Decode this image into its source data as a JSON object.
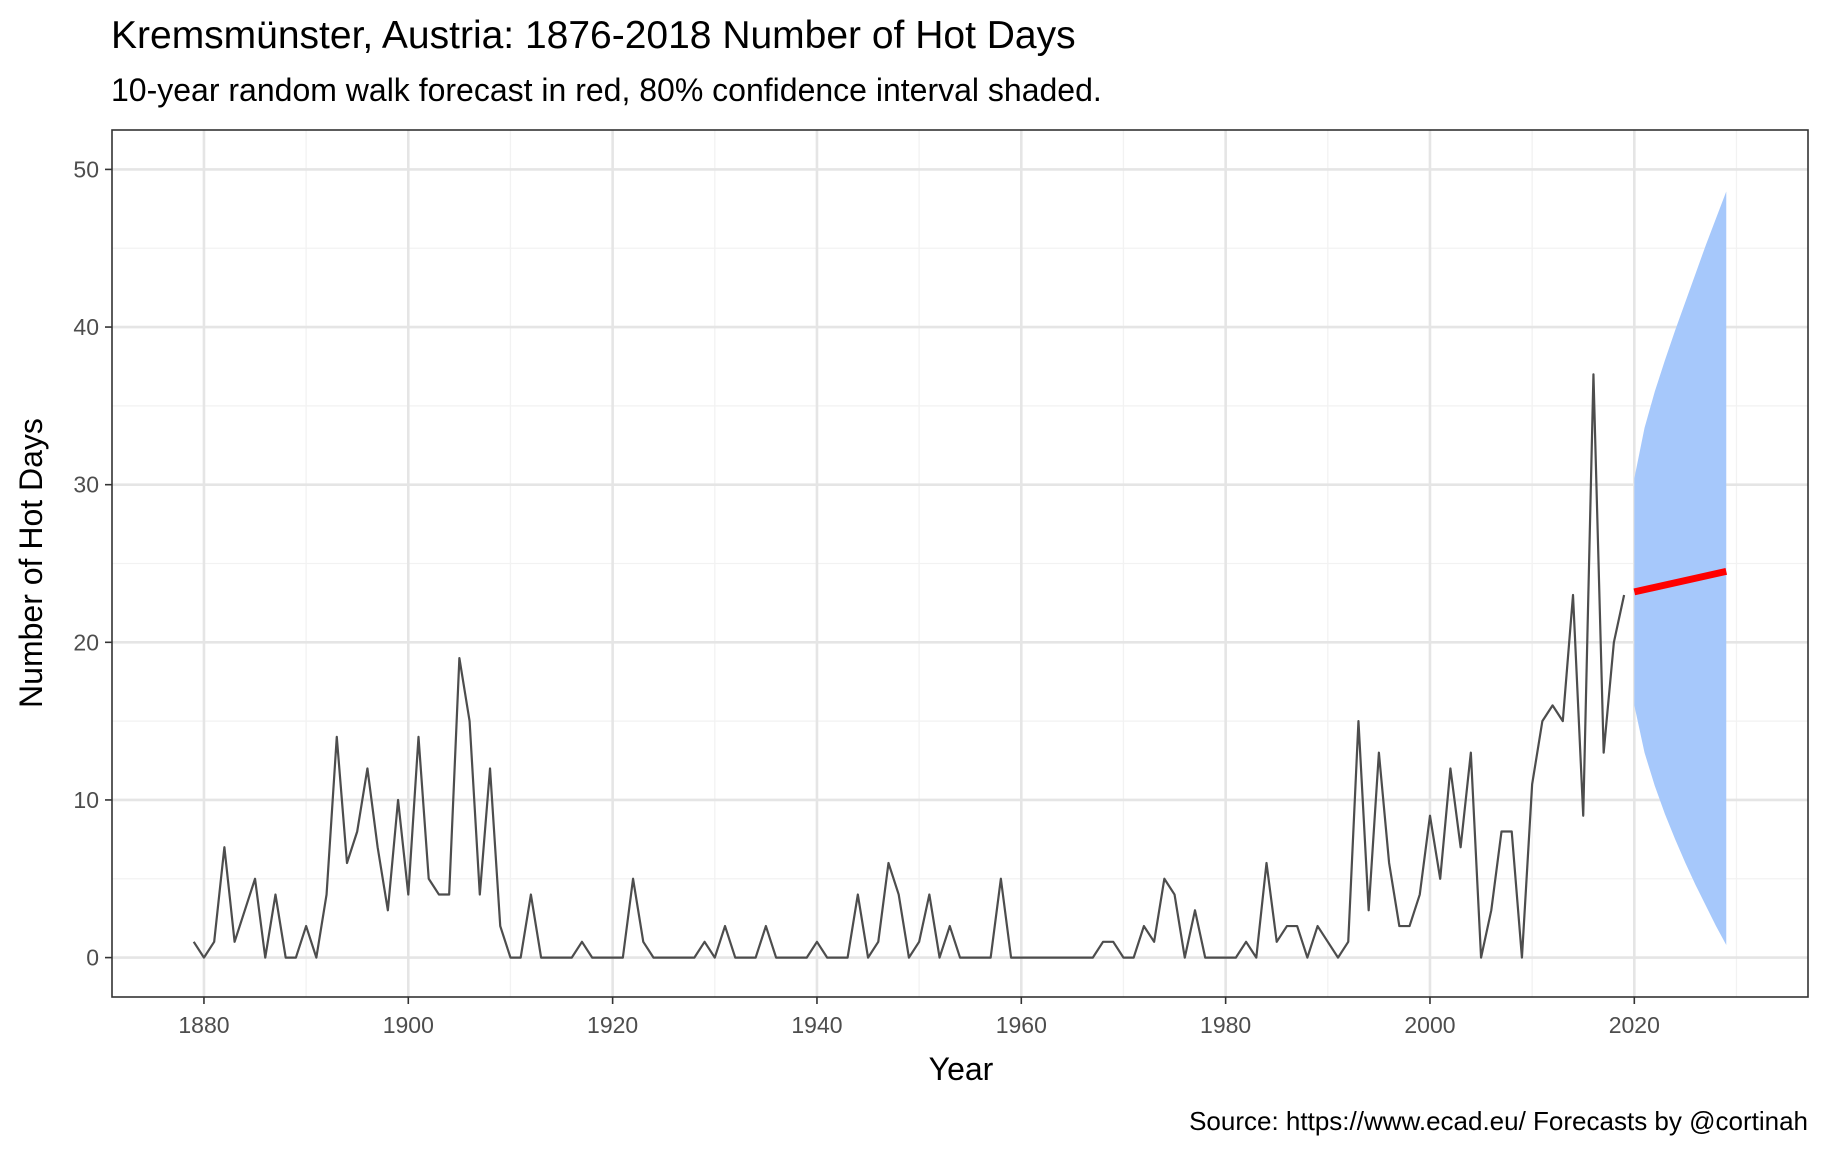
{
  "colors": {
    "observed_line": "#4d4d4d",
    "forecast_line": "#ff0000",
    "interval_fill": "#a6c8fb",
    "grid_major": "#e5e5e5",
    "grid_minor": "#f2f2f2",
    "panel_border": "#333333"
  },
  "chart_data": {
    "type": "line",
    "title": "Kremsmünster, Austria: 1876-2018 Number of Hot Days",
    "subtitle": "10-year random walk forecast in red, 80% confidence interval shaded.",
    "caption": "Source: https://www.ecad.eu/ Forecasts by @cortinah",
    "xlabel": "Year",
    "ylabel": "Number of Hot Days",
    "xlim": [
      1871,
      2037
    ],
    "ylim": [
      -2.5,
      52.5
    ],
    "xticks": [
      1880,
      1900,
      1920,
      1940,
      1960,
      1980,
      2000,
      2020
    ],
    "yticks": [
      0,
      10,
      20,
      30,
      40,
      50
    ],
    "grid": true,
    "legend": "none",
    "series": [
      {
        "role": "observed",
        "x": [
          1879,
          1880,
          1881,
          1882,
          1883,
          1884,
          1885,
          1886,
          1887,
          1888,
          1889,
          1890,
          1891,
          1892,
          1893,
          1894,
          1895,
          1896,
          1897,
          1898,
          1899,
          1900,
          1901,
          1902,
          1903,
          1904,
          1905,
          1906,
          1907,
          1908,
          1909,
          1910,
          1911,
          1912,
          1913,
          1914,
          1915,
          1916,
          1917,
          1918,
          1919,
          1920,
          1921,
          1922,
          1923,
          1924,
          1925,
          1926,
          1927,
          1928,
          1929,
          1930,
          1931,
          1932,
          1933,
          1934,
          1935,
          1936,
          1937,
          1938,
          1939,
          1940,
          1941,
          1942,
          1943,
          1944,
          1945,
          1946,
          1947,
          1948,
          1949,
          1950,
          1951,
          1952,
          1953,
          1954,
          1955,
          1956,
          1957,
          1958,
          1959,
          1960,
          1961,
          1962,
          1963,
          1964,
          1965,
          1966,
          1967,
          1968,
          1969,
          1970,
          1971,
          1972,
          1973,
          1974,
          1975,
          1976,
          1977,
          1978,
          1979,
          1980,
          1981,
          1982,
          1983,
          1984,
          1985,
          1986,
          1987,
          1988,
          1989,
          1990,
          1991,
          1992,
          1993,
          1994,
          1995,
          1996,
          1997,
          1998,
          1999,
          2000,
          2001,
          2002,
          2003,
          2004,
          2005,
          2006,
          2007,
          2008,
          2009,
          2010,
          2011,
          2012,
          2013,
          2014,
          2015,
          2016,
          2017,
          2018,
          2019
        ],
        "values": [
          1,
          0,
          1,
          7,
          1,
          3,
          5,
          0,
          4,
          0,
          0,
          2,
          0,
          4,
          14,
          6,
          8,
          12,
          7,
          3,
          10,
          4,
          14,
          5,
          4,
          4,
          19,
          15,
          4,
          12,
          2,
          0,
          0,
          4,
          0,
          0,
          0,
          0,
          1,
          0,
          0,
          0,
          0,
          5,
          1,
          0,
          0,
          0,
          0,
          0,
          1,
          0,
          2,
          0,
          0,
          0,
          2,
          0,
          0,
          0,
          0,
          1,
          0,
          0,
          0,
          4,
          0,
          1,
          6,
          4,
          0,
          1,
          4,
          0,
          2,
          0,
          0,
          0,
          0,
          5,
          0,
          0,
          0,
          0,
          0,
          0,
          0,
          0,
          0,
          1,
          1,
          0,
          0,
          2,
          1,
          5,
          4,
          0,
          3,
          0,
          0,
          0,
          0,
          1,
          0,
          6,
          1,
          2,
          2,
          0,
          2,
          1,
          0,
          1,
          15,
          3,
          13,
          6,
          2,
          2,
          4,
          9,
          5,
          12,
          7,
          13,
          0,
          3,
          8,
          8,
          0,
          11,
          15,
          16,
          15,
          23,
          9,
          37,
          13,
          20,
          23
        ]
      },
      {
        "role": "forecast",
        "x": [
          2020,
          2029
        ],
        "values": [
          23.2,
          24.5
        ]
      },
      {
        "role": "interval_80",
        "x": [
          2020,
          2021,
          2022,
          2023,
          2024,
          2025,
          2026,
          2027,
          2028,
          2029
        ],
        "lower": [
          16.0,
          13.0,
          10.9,
          9.1,
          7.5,
          6.0,
          4.6,
          3.3,
          2.0,
          0.8
        ],
        "upper": [
          30.4,
          33.6,
          35.9,
          37.9,
          39.8,
          41.6,
          43.4,
          45.2,
          46.9,
          48.6
        ]
      }
    ]
  }
}
